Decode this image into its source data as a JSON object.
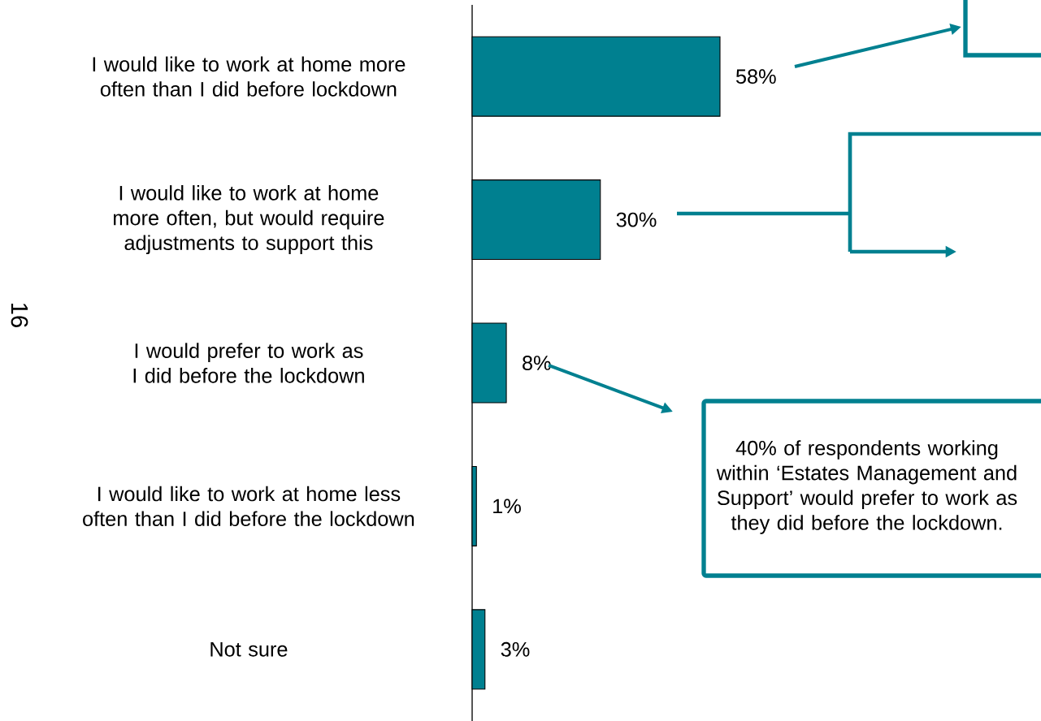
{
  "chart_data": {
    "type": "bar",
    "orientation": "horizontal",
    "categories": [
      "I would like to work at home more often than I did before lockdown",
      "I would like to work at home more often, but would require adjustments to support this",
      "I would prefer to work as I did before the lockdown",
      "I would like to work at home less often than I did before the lockdown",
      "Not sure"
    ],
    "values": [
      58,
      30,
      8,
      1,
      3
    ],
    "value_labels": [
      "58%",
      "30%",
      "8%",
      "1%",
      "3%"
    ],
    "color": "#008090",
    "annotations": [
      "16",
      "40% of respondents working within ‘Estates Management and Support’ would prefer to work as they did before the lockdown."
    ]
  }
}
